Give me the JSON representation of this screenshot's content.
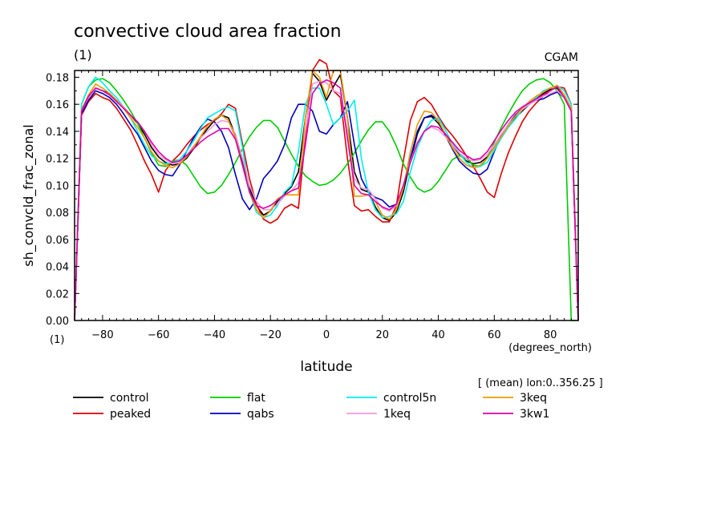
{
  "chart_data": {
    "type": "line",
    "title": "convective cloud area fraction",
    "subtitle": "(1)",
    "source_label": "CGAM",
    "ylabel": "sh_convcld_frac_zonal",
    "yunits": "(1)",
    "xlabel": "latitude",
    "xunits": "(degrees_north)",
    "averaging_note": "[ (mean) lon:0..356.25 ]",
    "xlim": [
      -90,
      90
    ],
    "ylim": [
      0.0,
      0.185
    ],
    "xticks": [
      -80,
      -60,
      -40,
      -20,
      0,
      20,
      40,
      60,
      80
    ],
    "xtick_labels": [
      "−80",
      "−60",
      "−40",
      "−20",
      "0",
      "20",
      "40",
      "60",
      "80"
    ],
    "yticks": [
      0.0,
      0.02,
      0.04,
      0.06,
      0.08,
      0.1,
      0.12,
      0.14,
      0.16,
      0.18
    ],
    "ytick_labels": [
      "0.00",
      "0.02",
      "0.04",
      "0.06",
      "0.08",
      "0.10",
      "0.12",
      "0.14",
      "0.16",
      "0.18"
    ],
    "grid": false,
    "legend_position": "bottom",
    "x": [
      -90,
      -87.5,
      -85,
      -82.5,
      -80,
      -77.5,
      -75,
      -72.5,
      -70,
      -67.5,
      -65,
      -62.5,
      -60,
      -57.5,
      -55,
      -52.5,
      -50,
      -47.5,
      -45,
      -42.5,
      -40,
      -37.5,
      -35,
      -32.5,
      -30,
      -27.5,
      -25,
      -22.5,
      -20,
      -17.5,
      -15,
      -12.5,
      -10,
      -7.5,
      -5,
      -2.5,
      0,
      2.5,
      5,
      7.5,
      10,
      12.5,
      15,
      17.5,
      20,
      22.5,
      25,
      27.5,
      30,
      32.5,
      35,
      37.5,
      40,
      42.5,
      45,
      47.5,
      50,
      52.5,
      55,
      57.5,
      60,
      62.5,
      65,
      67.5,
      70,
      72.5,
      75,
      77.5,
      80,
      82.5,
      85,
      87.5,
      90
    ],
    "series": [
      {
        "name": "control",
        "color": "#000000",
        "values": [
          0.0,
          0.155,
          0.165,
          0.172,
          0.17,
          0.168,
          0.163,
          0.158,
          0.152,
          0.146,
          0.138,
          0.128,
          0.121,
          0.117,
          0.115,
          0.116,
          0.12,
          0.127,
          0.135,
          0.142,
          0.148,
          0.152,
          0.15,
          0.137,
          0.118,
          0.098,
          0.085,
          0.078,
          0.081,
          0.088,
          0.094,
          0.099,
          0.11,
          0.15,
          0.183,
          0.177,
          0.163,
          0.173,
          0.182,
          0.15,
          0.11,
          0.097,
          0.095,
          0.084,
          0.076,
          0.074,
          0.08,
          0.095,
          0.118,
          0.138,
          0.15,
          0.151,
          0.146,
          0.138,
          0.13,
          0.123,
          0.118,
          0.116,
          0.117,
          0.121,
          0.128,
          0.136,
          0.143,
          0.15,
          0.155,
          0.16,
          0.164,
          0.168,
          0.171,
          0.172,
          0.165,
          0.155,
          0.0
        ]
      },
      {
        "name": "peaked",
        "color": "#dd0000",
        "values": [
          0.0,
          0.152,
          0.162,
          0.168,
          0.165,
          0.163,
          0.157,
          0.149,
          0.141,
          0.13,
          0.118,
          0.108,
          0.095,
          0.111,
          0.118,
          0.123,
          0.13,
          0.136,
          0.141,
          0.145,
          0.148,
          0.153,
          0.16,
          0.157,
          0.131,
          0.105,
          0.086,
          0.075,
          0.072,
          0.075,
          0.083,
          0.086,
          0.083,
          0.135,
          0.185,
          0.193,
          0.19,
          0.17,
          0.165,
          0.12,
          0.085,
          0.081,
          0.082,
          0.077,
          0.073,
          0.073,
          0.085,
          0.118,
          0.148,
          0.162,
          0.165,
          0.16,
          0.151,
          0.143,
          0.137,
          0.13,
          0.122,
          0.114,
          0.105,
          0.095,
          0.091,
          0.109,
          0.124,
          0.136,
          0.147,
          0.155,
          0.161,
          0.166,
          0.17,
          0.173,
          0.172,
          0.16,
          0.0
        ]
      },
      {
        "name": "flat",
        "color": "#00cc00",
        "values": [
          0.0,
          0.16,
          0.173,
          0.178,
          0.179,
          0.176,
          0.17,
          0.163,
          0.155,
          0.146,
          0.135,
          0.124,
          0.115,
          0.114,
          0.118,
          0.119,
          0.115,
          0.107,
          0.099,
          0.094,
          0.095,
          0.1,
          0.108,
          0.117,
          0.127,
          0.136,
          0.143,
          0.148,
          0.148,
          0.143,
          0.133,
          0.123,
          0.114,
          0.107,
          0.103,
          0.1,
          0.101,
          0.104,
          0.109,
          0.116,
          0.124,
          0.133,
          0.141,
          0.147,
          0.147,
          0.14,
          0.129,
          0.116,
          0.106,
          0.098,
          0.095,
          0.097,
          0.103,
          0.111,
          0.119,
          0.122,
          0.12,
          0.115,
          0.114,
          0.12,
          0.132,
          0.143,
          0.153,
          0.162,
          0.17,
          0.175,
          0.178,
          0.179,
          0.176,
          0.17,
          0.16,
          0.0,
          0.0
        ]
      },
      {
        "name": "qabs",
        "color": "#0000bb",
        "values": [
          0.0,
          0.153,
          0.163,
          0.17,
          0.168,
          0.165,
          0.16,
          0.153,
          0.145,
          0.138,
          0.128,
          0.118,
          0.111,
          0.108,
          0.107,
          0.115,
          0.125,
          0.135,
          0.143,
          0.149,
          0.147,
          0.14,
          0.128,
          0.108,
          0.09,
          0.082,
          0.09,
          0.105,
          0.111,
          0.118,
          0.13,
          0.15,
          0.16,
          0.16,
          0.155,
          0.14,
          0.138,
          0.145,
          0.15,
          0.162,
          0.13,
          0.105,
          0.095,
          0.091,
          0.089,
          0.084,
          0.086,
          0.099,
          0.12,
          0.14,
          0.15,
          0.152,
          0.148,
          0.137,
          0.127,
          0.118,
          0.113,
          0.109,
          0.108,
          0.112,
          0.125,
          0.137,
          0.145,
          0.152,
          0.157,
          0.161,
          0.163,
          0.164,
          0.167,
          0.169,
          0.165,
          0.155,
          0.0
        ]
      },
      {
        "name": "control5n",
        "color": "#00eeee",
        "values": [
          0.0,
          0.16,
          0.173,
          0.18,
          0.176,
          0.17,
          0.165,
          0.158,
          0.15,
          0.14,
          0.13,
          0.122,
          0.118,
          0.116,
          0.117,
          0.119,
          0.125,
          0.133,
          0.142,
          0.15,
          0.153,
          0.156,
          0.158,
          0.155,
          0.128,
          0.095,
          0.08,
          0.076,
          0.078,
          0.085,
          0.095,
          0.1,
          0.125,
          0.16,
          0.172,
          0.172,
          0.16,
          0.145,
          0.15,
          0.155,
          0.163,
          0.12,
          0.095,
          0.082,
          0.076,
          0.077,
          0.079,
          0.088,
          0.11,
          0.128,
          0.14,
          0.148,
          0.15,
          0.141,
          0.131,
          0.124,
          0.117,
          0.113,
          0.114,
          0.117,
          0.126,
          0.135,
          0.143,
          0.149,
          0.156,
          0.161,
          0.165,
          0.17,
          0.172,
          0.174,
          0.17,
          0.16,
          0.0
        ]
      },
      {
        "name": "1keq",
        "color": "#ee99dd",
        "values": [
          0.0,
          0.155,
          0.165,
          0.172,
          0.17,
          0.167,
          0.163,
          0.158,
          0.152,
          0.147,
          0.14,
          0.13,
          0.123,
          0.119,
          0.116,
          0.117,
          0.122,
          0.129,
          0.135,
          0.14,
          0.145,
          0.148,
          0.147,
          0.138,
          0.12,
          0.1,
          0.088,
          0.082,
          0.082,
          0.086,
          0.092,
          0.096,
          0.102,
          0.14,
          0.175,
          0.177,
          0.176,
          0.17,
          0.168,
          0.14,
          0.105,
          0.098,
          0.097,
          0.09,
          0.083,
          0.081,
          0.085,
          0.1,
          0.118,
          0.132,
          0.14,
          0.143,
          0.141,
          0.136,
          0.13,
          0.124,
          0.12,
          0.118,
          0.119,
          0.123,
          0.13,
          0.138,
          0.145,
          0.151,
          0.156,
          0.16,
          0.163,
          0.166,
          0.168,
          0.17,
          0.165,
          0.155,
          0.0
        ]
      },
      {
        "name": "3keq",
        "color": "#ee9900",
        "values": [
          0.0,
          0.156,
          0.167,
          0.175,
          0.172,
          0.168,
          0.163,
          0.157,
          0.15,
          0.143,
          0.135,
          0.125,
          0.118,
          0.115,
          0.113,
          0.116,
          0.121,
          0.128,
          0.136,
          0.144,
          0.149,
          0.152,
          0.148,
          0.135,
          0.115,
          0.095,
          0.082,
          0.076,
          0.081,
          0.09,
          0.093,
          0.093,
          0.093,
          0.15,
          0.185,
          0.18,
          0.165,
          0.185,
          0.185,
          0.15,
          0.092,
          0.092,
          0.093,
          0.088,
          0.078,
          0.075,
          0.082,
          0.098,
          0.125,
          0.145,
          0.155,
          0.154,
          0.148,
          0.138,
          0.128,
          0.12,
          0.115,
          0.113,
          0.115,
          0.12,
          0.128,
          0.136,
          0.144,
          0.151,
          0.157,
          0.162,
          0.166,
          0.169,
          0.172,
          0.174,
          0.167,
          0.157,
          0.0
        ]
      },
      {
        "name": "3kw1",
        "color": "#dd00aa",
        "values": [
          0.0,
          0.155,
          0.166,
          0.172,
          0.17,
          0.167,
          0.162,
          0.157,
          0.152,
          0.147,
          0.14,
          0.132,
          0.125,
          0.12,
          0.117,
          0.118,
          0.122,
          0.127,
          0.132,
          0.136,
          0.139,
          0.142,
          0.142,
          0.134,
          0.115,
          0.095,
          0.085,
          0.083,
          0.085,
          0.089,
          0.093,
          0.096,
          0.098,
          0.13,
          0.168,
          0.175,
          0.178,
          0.176,
          0.172,
          0.135,
          0.1,
          0.094,
          0.093,
          0.088,
          0.084,
          0.082,
          0.086,
          0.1,
          0.117,
          0.131,
          0.14,
          0.144,
          0.143,
          0.138,
          0.132,
          0.126,
          0.122,
          0.119,
          0.12,
          0.125,
          0.133,
          0.141,
          0.148,
          0.154,
          0.158,
          0.161,
          0.164,
          0.167,
          0.17,
          0.173,
          0.165,
          0.155,
          0.0
        ]
      }
    ]
  }
}
